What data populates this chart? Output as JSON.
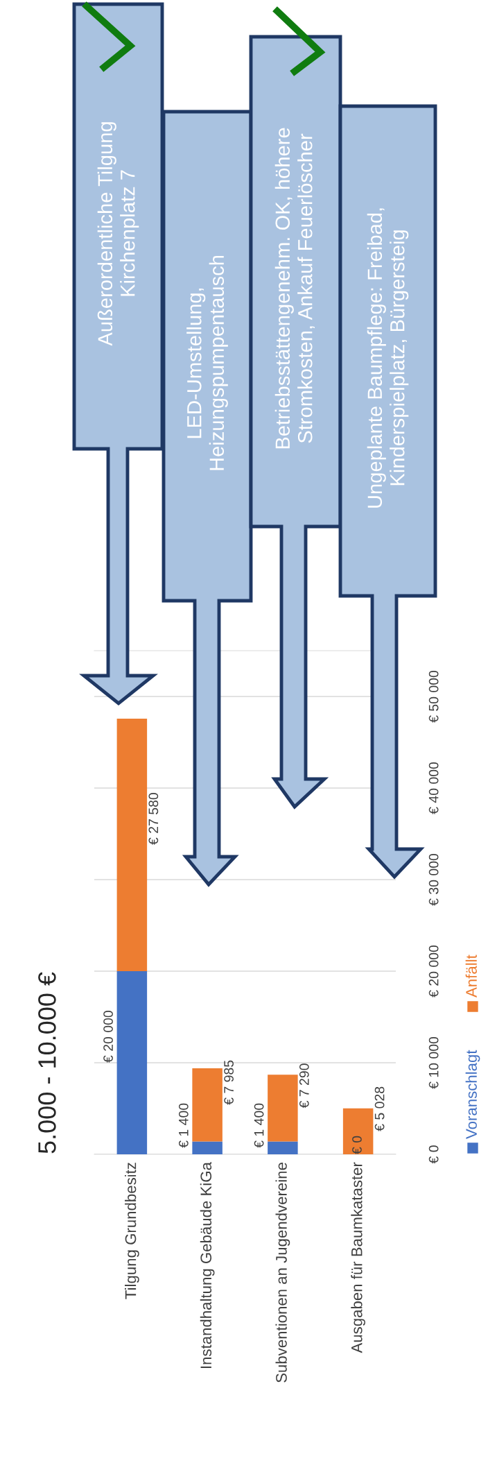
{
  "chart_data": {
    "type": "bar",
    "stacked": true,
    "title": "5.000 - 10.000 €",
    "categories": [
      "Tilgung Grundbesitz",
      "Instandhaltung Gebäude KiGa",
      "Subventionen an Jugendvereine",
      "Ausgaben für Baumkataster"
    ],
    "series": [
      {
        "name": "Voranschlagt",
        "color": "#4472c4",
        "values": [
          20000,
          1400,
          1400,
          0
        ],
        "value_labels": [
          "€ 20 000",
          "€ 1 400",
          "€ 1 400",
          "€ 0"
        ]
      },
      {
        "name": "Anfällt",
        "color": "#ed7d31",
        "values": [
          27580,
          7985,
          7290,
          5028
        ],
        "value_labels": [
          "€ 27 580",
          "€ 7 985",
          "€ 7 290",
          "€ 5 028"
        ]
      }
    ],
    "ylim": [
      0,
      55000
    ],
    "yticks": [
      {
        "value": 0,
        "label": "€ 0"
      },
      {
        "value": 10000,
        "label": "€ 10 000"
      },
      {
        "value": 20000,
        "label": "€ 20 000"
      },
      {
        "value": 30000,
        "label": "€ 30 000"
      },
      {
        "value": 40000,
        "label": "€ 40 000"
      },
      {
        "value": 50000,
        "label": "€ 50 000"
      }
    ],
    "grid": "y",
    "legend": "right",
    "annotations": [
      "Außerordentliche Tilgung\nKirchenplatz 7",
      "LED-Umstellung,\nHeizungspumpentausch",
      "Betriebsstättengenehm. OK, höhere\nStromkosten, Ankauf Feuerlöscher",
      "Ungeplante Baumpflege: Freibad,\nKinderspielplatz, Bürgersteig"
    ]
  }
}
